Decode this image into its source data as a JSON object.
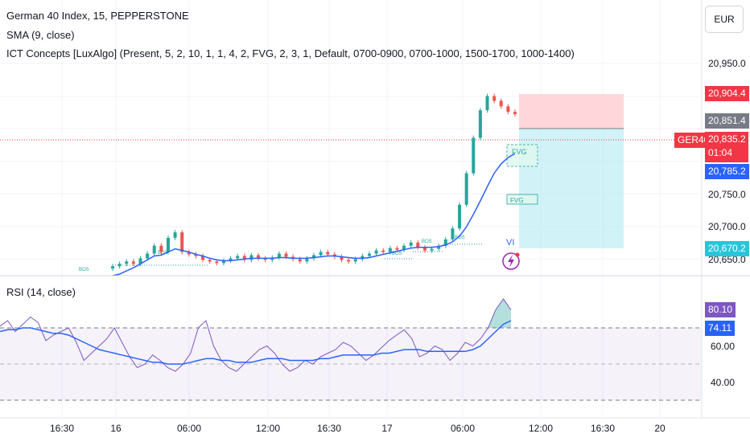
{
  "header": {
    "symbol_line": "German 40 Index, 15, PEPPERSTONE",
    "sma_line": "SMA (9, close)",
    "ict_line": "ICT Concepts [LuxAlgo] (Present, 5, 2, 10, 1, 1, 4, 2, FVG, 2, 3, 1, Default, 0700-0900, 0700-1000, 1500-1700, 1000-1400)",
    "currency": "EUR"
  },
  "rsi_panel": {
    "label": "RSI (14, close)"
  },
  "price_tags": {
    "upper_zone": "20,904.4",
    "entry": "20,851.4",
    "symbol_tag": "GER40",
    "last_price": "20,835.2",
    "countdown": "01:04",
    "sma_value": "20,785.2",
    "lower_zone": "20,670.2",
    "rsi_value": "80.10",
    "rsi_ma_value": "74.11"
  },
  "annotations": {
    "bos": [
      "BOS",
      "BOS",
      "BOS",
      "BOS",
      "BOS"
    ],
    "fvg": [
      "FVG",
      "FVG"
    ],
    "vi": "VI"
  },
  "colors": {
    "up": "#26a69a",
    "down": "#ef5350",
    "sma": "#2962ff",
    "rsi": "#7e57c2",
    "rsi_ma": "#2962ff",
    "tp_zone": "#b2ebf2",
    "sl_zone": "#ffcdd2",
    "last_price_tag": "#f23645",
    "entry_tag": "#787b86",
    "sma_tag": "#2962ff",
    "lower_zone_tag": "#26c6da",
    "rsi_tag": "#7e57c2"
  },
  "chart_data": [
    {
      "type": "candlestick",
      "title": "German 40 Index, 15, PEPPERSTONE",
      "x_ticks": [
        "16:30",
        "16",
        "06:00",
        "12:00",
        "16:30",
        "17",
        "06:00",
        "12:00",
        "16:30",
        "20"
      ],
      "y_ticks": [
        "20,950.0",
        "20,900.0",
        "20,850.0",
        "20,800.0",
        "20,750.0",
        "20,700.0",
        "20,650.0"
      ],
      "ylim": [
        20630,
        20980
      ],
      "series": [
        {
          "name": "price",
          "values": [
            20642,
            20645,
            20648,
            20645,
            20652,
            20658,
            20668,
            20660,
            20678,
            20685,
            20660,
            20657,
            20655,
            20650,
            20648,
            20646,
            20649,
            20652,
            20655,
            20650,
            20656,
            20652,
            20650,
            20653,
            20658,
            20654,
            20651,
            20648,
            20652,
            20656,
            20660,
            20657,
            20654,
            20650,
            20648,
            20651,
            20655,
            20658,
            20662,
            20660,
            20665,
            20663,
            20668,
            20672,
            20666,
            20662,
            20664,
            20668,
            20676,
            20690,
            20720,
            20760,
            20805,
            20840,
            20858,
            20852,
            20845,
            20838,
            20835
          ]
        },
        {
          "name": "SMA (9, close)",
          "values": [
            20630,
            20632,
            20636,
            20640,
            20645,
            20650,
            20655,
            20656,
            20660,
            20664,
            20662,
            20660,
            20657,
            20655,
            20652,
            20650,
            20649,
            20649,
            20650,
            20651,
            20652,
            20652,
            20652,
            20652,
            20653,
            20653,
            20652,
            20652,
            20652,
            20653,
            20654,
            20655,
            20655,
            20654,
            20653,
            20652,
            20652,
            20653,
            20655,
            20657,
            20659,
            20661,
            20663,
            20665,
            20666,
            20666,
            20666,
            20667,
            20669,
            20673,
            20680,
            20692,
            20708,
            20725,
            20743,
            20760,
            20772,
            20780,
            20785
          ]
        }
      ]
    },
    {
      "type": "line",
      "title": "RSI (14, close)",
      "y_ticks": [
        "60.00",
        "40.00"
      ],
      "ylim": [
        30,
        90
      ],
      "levels": [
        70,
        50,
        30
      ],
      "series": [
        {
          "name": "RSI",
          "values": [
            71,
            74,
            68,
            72,
            76,
            73,
            63,
            66,
            68,
            70,
            62,
            52,
            56,
            60,
            64,
            70,
            62,
            54,
            48,
            50,
            55,
            52,
            48,
            46,
            50,
            56,
            70,
            74,
            60,
            52,
            48,
            46,
            50,
            54,
            58,
            60,
            56,
            50,
            46,
            48,
            52,
            50,
            54,
            56,
            58,
            62,
            60,
            56,
            52,
            55,
            59,
            63,
            66,
            69,
            64,
            54,
            56,
            60,
            58,
            52,
            56,
            62,
            60,
            64,
            70,
            80,
            86,
            80
          ]
        },
        {
          "name": "RSI MA",
          "values": [
            68,
            69,
            69,
            70,
            70,
            69,
            68,
            67,
            67,
            66,
            64,
            62,
            60,
            58,
            57,
            56,
            55,
            54,
            53,
            52,
            51,
            51,
            50,
            50,
            50,
            51,
            52,
            53,
            53,
            52,
            52,
            51,
            51,
            51,
            52,
            53,
            53,
            53,
            52,
            52,
            52,
            52,
            53,
            53,
            54,
            55,
            55,
            55,
            55,
            55,
            56,
            56,
            57,
            58,
            58,
            58,
            57,
            57,
            57,
            57,
            57,
            57,
            58,
            60,
            64,
            68,
            72,
            74
          ]
        }
      ]
    }
  ]
}
